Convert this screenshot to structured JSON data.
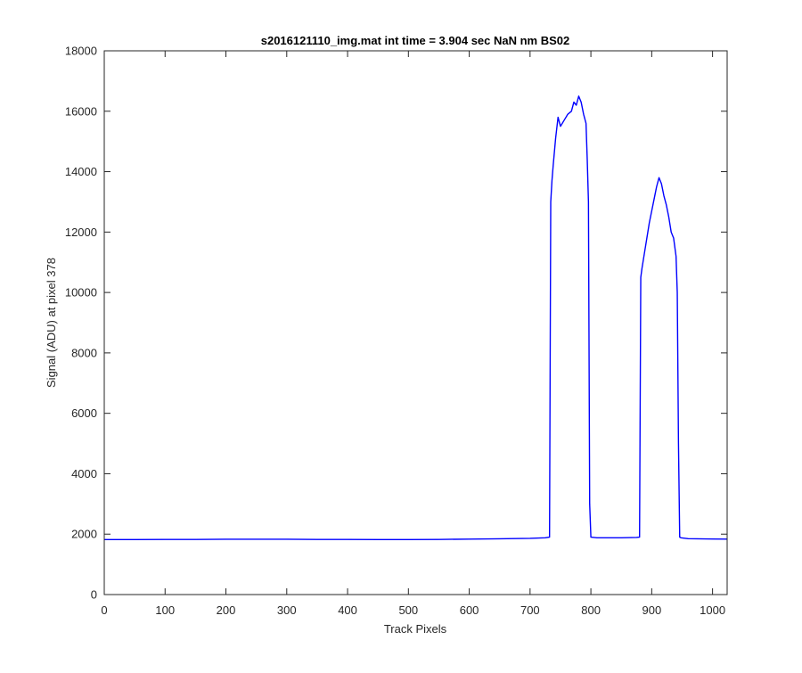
{
  "chart_data": {
    "type": "line",
    "title": "s2016121110_img.mat int time = 3.904 sec  NaN nm BS02",
    "xlabel": "Track Pixels",
    "ylabel": "Signal (ADU) at pixel 378",
    "xlim": [
      0,
      1024
    ],
    "ylim": [
      0,
      18000
    ],
    "xticks": [
      0,
      100,
      200,
      300,
      400,
      500,
      600,
      700,
      800,
      900,
      1000
    ],
    "yticks": [
      0,
      2000,
      4000,
      6000,
      8000,
      10000,
      12000,
      14000,
      16000,
      18000
    ],
    "grid": false,
    "line_color": "#0000ff",
    "series": [
      {
        "x": [
          0,
          50,
          100,
          150,
          200,
          250,
          300,
          350,
          400,
          450,
          500,
          550,
          600,
          650,
          700,
          725,
          732,
          734,
          736,
          738,
          742,
          746,
          750,
          756,
          762,
          768,
          772,
          776,
          780,
          784,
          788,
          792,
          794,
          796,
          798,
          800,
          810,
          850,
          875,
          880,
          882,
          884,
          888,
          892,
          896,
          900,
          904,
          908,
          912,
          916,
          920,
          924,
          928,
          932,
          936,
          940,
          942,
          944,
          946,
          948,
          960,
          1000,
          1024
        ],
        "y": [
          1820,
          1820,
          1825,
          1825,
          1830,
          1830,
          1830,
          1825,
          1825,
          1820,
          1820,
          1825,
          1835,
          1845,
          1860,
          1880,
          1900,
          13000,
          13700,
          14200,
          15100,
          15800,
          15500,
          15700,
          15900,
          16000,
          16300,
          16200,
          16500,
          16300,
          15900,
          15600,
          14400,
          13000,
          3000,
          1900,
          1880,
          1880,
          1890,
          1900,
          10500,
          10800,
          11300,
          11800,
          12300,
          12700,
          13100,
          13500,
          13800,
          13600,
          13200,
          12900,
          12500,
          12000,
          11800,
          11200,
          10000,
          5000,
          1900,
          1880,
          1850,
          1840,
          1835
        ]
      }
    ]
  }
}
